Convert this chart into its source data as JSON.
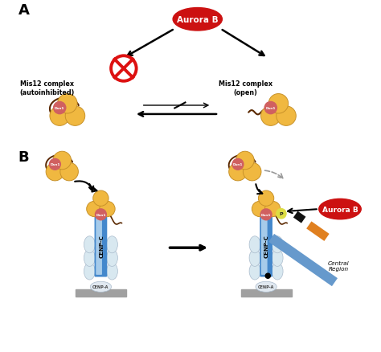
{
  "figure_size": [
    4.74,
    4.39
  ],
  "dpi": 100,
  "background": "#ffffff",
  "panel_A_label": "A",
  "panel_B_label": "B",
  "aurora_b_color": "#cc1111",
  "aurora_b_text": "Aurora B",
  "aurora_b_text_color": "#ffffff",
  "mis12_autoinhibited_label": "Mis12 complex\n(autoinhibited)",
  "mis12_open_label": "Mis12 complex\n(open)",
  "dsn1_color": "#d06060",
  "dsn1_text": "Dsn1",
  "dsn1_text_color": "#ffffff",
  "globule_color": "#f0b840",
  "globule_outline": "#c8922a",
  "tail_color": "#5a2800",
  "cenp_c_color_light": "#b8d8f0",
  "cenp_c_color_dark": "#4488cc",
  "cenp_c_label": "CENP-C",
  "cenp_a_label": "CENP-A",
  "nucleosome_color": "#d8e8f0",
  "nucleosome_edge": "#aabbcc",
  "dna_color": "#a0a0a0",
  "forbidden_color": "#dd1111",
  "arrow_color": "#222222",
  "gray_arrow_color": "#999999",
  "orange_seg_color": "#e08020",
  "black_seg_color": "#111111",
  "blue_rod_color": "#6699cc",
  "central_region_label": "Central\nRegion",
  "phospho_label": "P",
  "phospho_color": "#dddd44",
  "phospho_text_color": "#222222"
}
